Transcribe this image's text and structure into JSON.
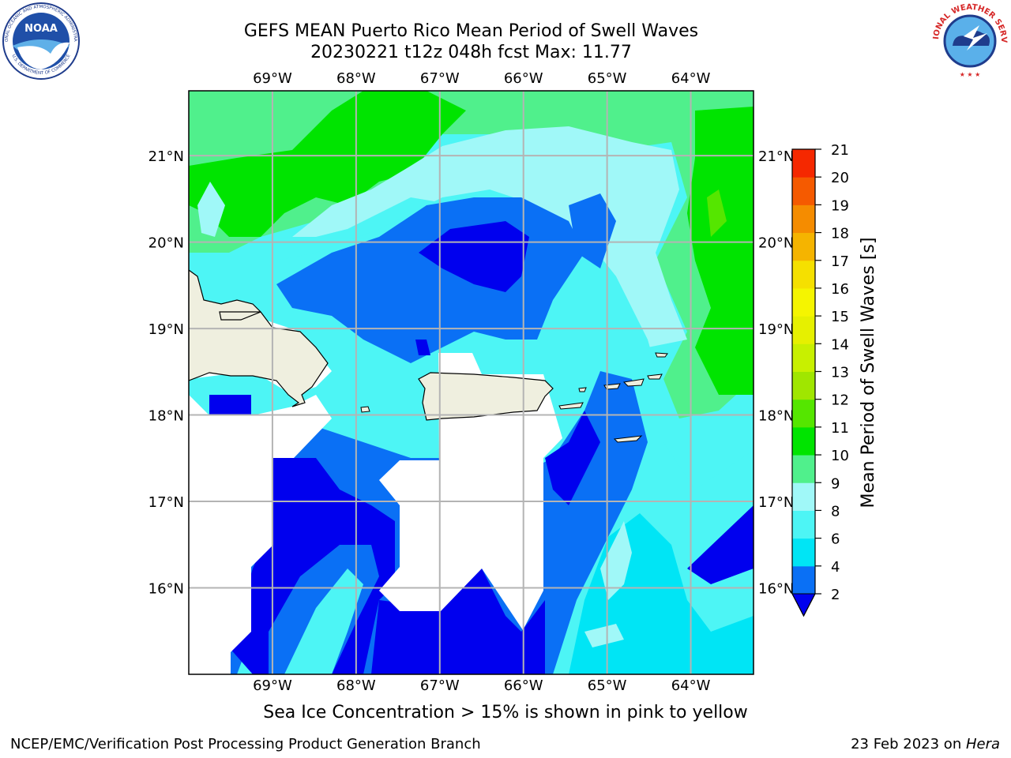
{
  "header": {
    "title_line1": "GEFS MEAN Puerto Rico Mean Period of Swell Waves",
    "title_line2": "20230221 t12z 048h fcst   Max: 11.77"
  },
  "logos": {
    "left": {
      "icon": "noaa-logo",
      "text_top": "NATIONAL OCEANIC AND ATMOSPHERIC ADMINISTRATION",
      "text_bottom": "U.S. DEPARTMENT OF COMMERCE",
      "center": "NOAA"
    },
    "right": {
      "icon": "nws-logo",
      "text": "NATIONAL WEATHER SERVICE"
    }
  },
  "map": {
    "lon_labels": [
      "69°W",
      "68°W",
      "67°W",
      "66°W",
      "65°W",
      "64°W"
    ],
    "lat_labels": [
      "16°N",
      "17°N",
      "18°N",
      "19°N",
      "20°N",
      "21°N"
    ],
    "lon_ticks": [
      -69,
      -68,
      -67,
      -66,
      -65,
      -64
    ],
    "lat_ticks": [
      16,
      17,
      18,
      19,
      20,
      21
    ],
    "extent": {
      "lon_min": -70,
      "lon_max": -63.25,
      "lat_min": 15,
      "lat_max": 21.75
    },
    "grid": true,
    "land_color": "#efefdf",
    "masked_color": "#ffffff"
  },
  "colorbar": {
    "label": "Mean Period of Swell Waves [s]",
    "ticks": [
      "2",
      "4",
      "6",
      "8",
      "9",
      "10",
      "11",
      "12",
      "13",
      "14",
      "15",
      "16",
      "17",
      "18",
      "19",
      "20",
      "21"
    ],
    "colors": [
      "#0a70f5",
      "#00e5f5",
      "#4df5f5",
      "#a0f8f8",
      "#50f08c",
      "#00e400",
      "#55e600",
      "#a0e600",
      "#c8f000",
      "#e6f000",
      "#f5f500",
      "#f5e000",
      "#f5b400",
      "#f58c00",
      "#f55a00",
      "#f52800"
    ],
    "under_color": "#0000ee",
    "extend": "min"
  },
  "footer": {
    "note": "Sea Ice Concentration > 15% is shown in pink to yellow",
    "left": "NCEP/EMC/Verification Post Processing Product Generation Branch",
    "right_date": "23 Feb 2023 on ",
    "right_host": "Hera"
  }
}
